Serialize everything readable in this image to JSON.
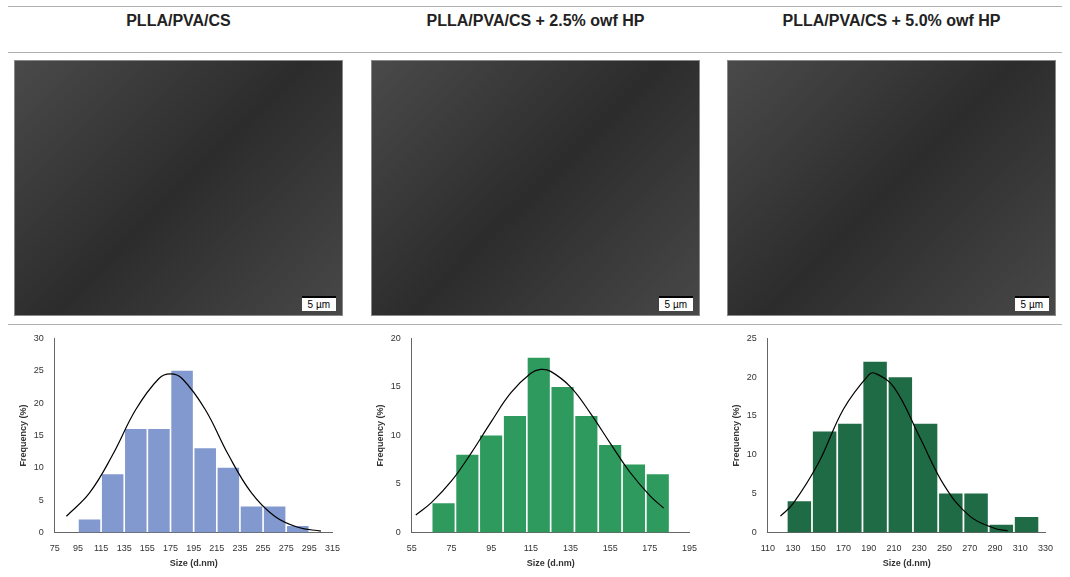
{
  "panels": [
    {
      "title": "PLLA/PVA/CS",
      "scale_bar": "5 µm"
    },
    {
      "title": "PLLA/PVA/CS + 2.5% owf HP",
      "scale_bar": "5 µm"
    },
    {
      "title": "PLLA/PVA/CS + 5.0% owf HP",
      "scale_bar": "5 µm"
    }
  ],
  "chart_data": [
    {
      "type": "histogram",
      "x_label": "Size (d.nm)",
      "y_label": "Frequency (%)",
      "color": "#8299cf",
      "grid": false,
      "bins": [
        95,
        115,
        135,
        155,
        175,
        195,
        215,
        235,
        255,
        275,
        295
      ],
      "values": [
        2,
        9,
        16,
        16,
        25,
        13,
        10,
        4,
        4,
        1
      ],
      "xlim": [
        75,
        315
      ],
      "xticks": [
        75,
        95,
        115,
        135,
        155,
        175,
        195,
        215,
        235,
        255,
        275,
        295,
        315
      ],
      "ylim": [
        0,
        30
      ],
      "yticks": [
        0,
        5,
        10,
        15,
        20,
        25,
        30
      ],
      "fit_curve": {
        "color": "#000000",
        "x": [
          85,
          105,
          125,
          145,
          165,
          175,
          185,
          205,
          225,
          245,
          265,
          285,
          305
        ],
        "values": [
          2.5,
          6.1,
          12.0,
          19.0,
          23.8,
          24.5,
          23.8,
          19.0,
          12.0,
          6.1,
          2.5,
          0.8,
          0.2
        ]
      }
    },
    {
      "type": "histogram",
      "x_label": "Size (d.nm)",
      "y_label": "Frequency (%)",
      "color": "#2e9a5e",
      "grid": false,
      "bins": [
        65,
        77,
        89,
        101,
        113,
        125,
        137,
        149,
        161,
        173,
        185
      ],
      "values": [
        3,
        8,
        10,
        12,
        18,
        15,
        12,
        9,
        7,
        6
      ],
      "xlim": [
        55,
        195
      ],
      "xticks": [
        55,
        75,
        95,
        115,
        135,
        155,
        175,
        195
      ],
      "ylim": [
        0,
        20
      ],
      "yticks": [
        0,
        5,
        10,
        15,
        20
      ],
      "fit_curve": {
        "color": "#000000",
        "x": [
          57,
          65,
          75,
          85,
          95,
          105,
          115,
          120,
          125,
          135,
          145,
          155,
          165,
          175,
          182
        ],
        "values": [
          1.8,
          3.1,
          5.3,
          8.2,
          11.4,
          14.4,
          16.4,
          16.8,
          16.6,
          15.0,
          12.3,
          9.2,
          6.2,
          3.8,
          2.5
        ]
      }
    },
    {
      "type": "histogram",
      "x_label": "Size (d.nm)",
      "y_label": "Frequency (%)",
      "color": "#1f6b45",
      "grid": false,
      "bins": [
        125,
        145,
        165,
        185,
        205,
        225,
        245,
        265,
        285,
        305,
        325
      ],
      "values": [
        4,
        13,
        14,
        22,
        20,
        14,
        5,
        5,
        1,
        2
      ],
      "xlim": [
        110,
        330
      ],
      "xticks": [
        110,
        130,
        150,
        170,
        190,
        210,
        230,
        250,
        270,
        290,
        310,
        330
      ],
      "ylim": [
        0,
        25
      ],
      "yticks": [
        0,
        5,
        10,
        15,
        20,
        25
      ],
      "fit_curve": {
        "color": "#000000",
        "x": [
          120,
          130,
          150,
          170,
          190,
          195,
          210,
          230,
          250,
          270,
          290,
          300
        ],
        "values": [
          2.1,
          3.7,
          8.9,
          15.9,
          20.3,
          20.5,
          18.7,
          12.4,
          6.0,
          2.1,
          0.5,
          0.2
        ]
      }
    }
  ]
}
